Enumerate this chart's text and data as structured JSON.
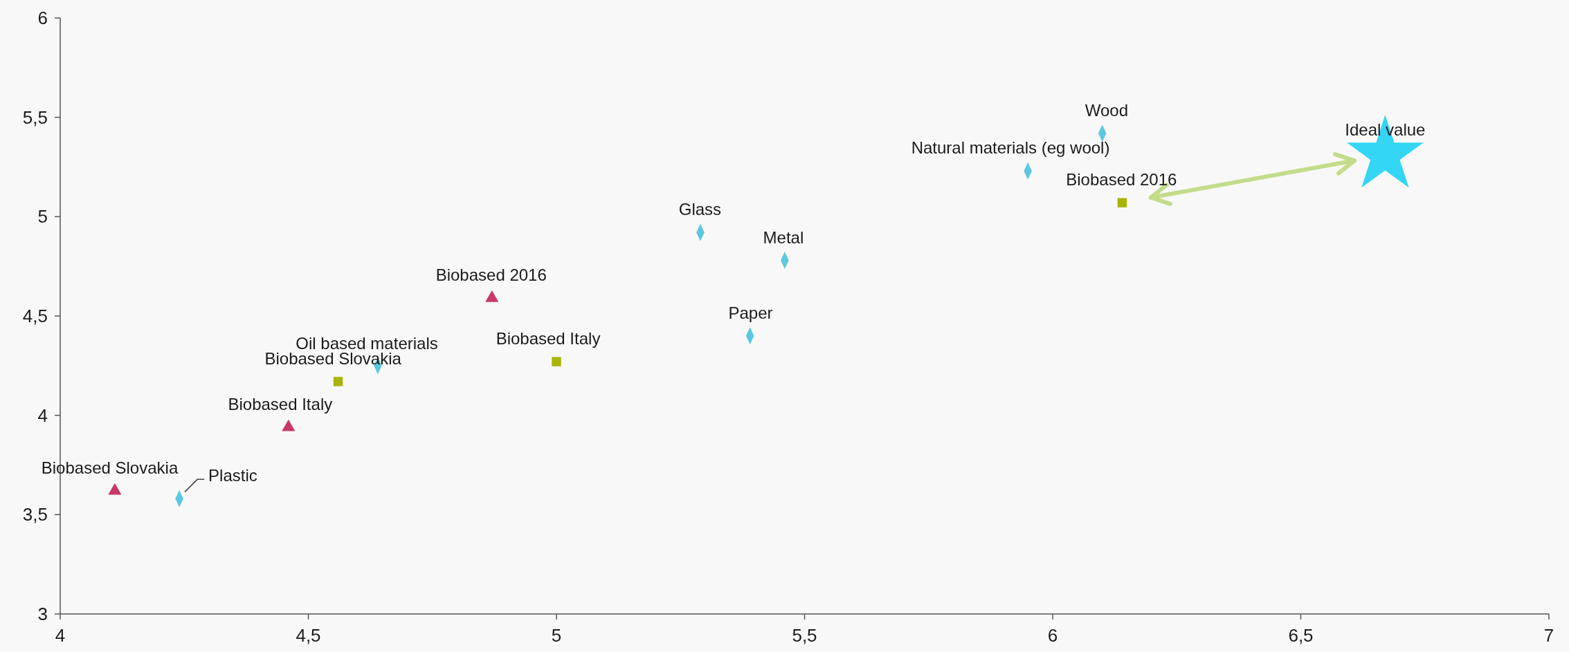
{
  "chart_data": {
    "type": "scatter",
    "xlim": [
      4,
      7
    ],
    "ylim": [
      3,
      6
    ],
    "xticks": [
      4,
      {
        "value": 4.5,
        "label": "4,5"
      },
      5,
      {
        "value": 5.5,
        "label": "5,5"
      },
      6,
      {
        "value": 6.5,
        "label": "6,5"
      },
      7
    ],
    "yticks": [
      3,
      {
        "value": 3.5,
        "label": "3,5"
      },
      4,
      {
        "value": 4.5,
        "label": "4,5"
      },
      5,
      {
        "value": 5.5,
        "label": "5,5"
      },
      6
    ],
    "grid": false,
    "series": [
      {
        "color": "#5bc8e0",
        "marker": "diamond",
        "x": [
          6.1,
          5.95,
          5.29,
          5.46,
          5.39,
          4.64,
          4.24
        ],
        "values": [
          5.42,
          5.23,
          4.92,
          4.78,
          4.4,
          4.25,
          3.58
        ]
      },
      {
        "color": "#a8b400",
        "marker": "square",
        "x": [
          6.14,
          5.0,
          4.56
        ],
        "values": [
          5.07,
          4.27,
          4.17
        ]
      },
      {
        "color": "#c8386a",
        "marker": "triangle",
        "x": [
          4.87,
          4.46,
          4.11
        ],
        "values": [
          4.59,
          3.94,
          3.62
        ]
      },
      {
        "name": "Ideal value",
        "color": "#33d6f5",
        "marker": "star",
        "x": [
          6.67
        ],
        "values": [
          5.31
        ]
      }
    ],
    "annotations": [
      {
        "text": "Wood",
        "x": 6.1,
        "y": 5.42
      },
      {
        "text": "Natural materials (eg wool)",
        "x": 5.95,
        "y": 5.23
      },
      {
        "text": "Glass",
        "x": 5.29,
        "y": 4.92
      },
      {
        "text": "Metal",
        "x": 5.46,
        "y": 4.78
      },
      {
        "text": "Paper",
        "x": 5.39,
        "y": 4.4
      },
      {
        "text": "Biobased 2016",
        "x": 6.14,
        "y": 5.07
      },
      {
        "text": "Biobased Italy",
        "x": 5.0,
        "y": 4.27
      },
      {
        "text": "Biobased Slovakia",
        "x": 4.56,
        "y": 4.17
      },
      {
        "text": "Oil based materials",
        "x": 4.64,
        "y": 4.25
      },
      {
        "text": "Biobased 2016",
        "x": 4.87,
        "y": 4.59
      },
      {
        "text": "Biobased Italy",
        "x": 4.46,
        "y": 3.94
      },
      {
        "text": "Biobased Slovakia",
        "x": 4.11,
        "y": 3.62
      },
      {
        "text": "Plastic",
        "x": 4.24,
        "y": 3.58
      }
    ]
  }
}
